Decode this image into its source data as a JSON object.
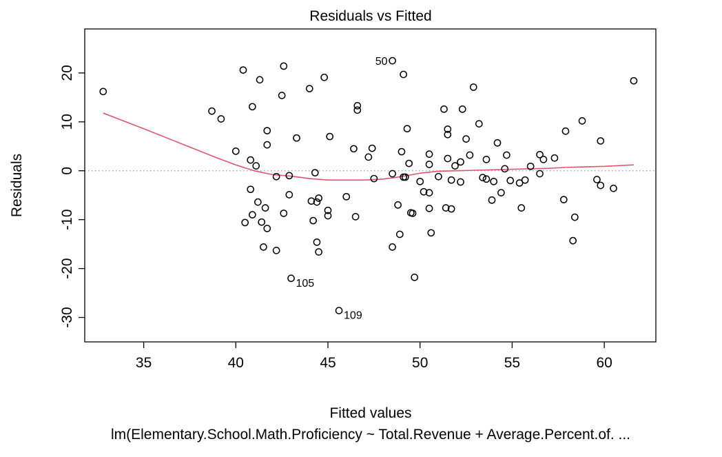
{
  "chart_data": {
    "type": "scatter",
    "title": "Residuals vs Fitted",
    "xlabel": "Fitted values",
    "ylabel": "Residuals",
    "subtitle": "lm(Elementary.School.Math.Proficiency ~ Total.Revenue + Average.Percent.of. ...",
    "xlim": [
      31.8,
      62.8
    ],
    "ylim": [
      -35,
      29
    ],
    "x_ticks": [
      35,
      40,
      45,
      50,
      55,
      60
    ],
    "x_tick_labels": [
      "35",
      "40",
      "45",
      "50",
      "55",
      "60"
    ],
    "y_ticks": [
      -30,
      -20,
      -10,
      0,
      10,
      20
    ],
    "y_tick_labels": [
      "-30",
      "-20",
      "-10",
      "0",
      "10",
      "20"
    ],
    "reference_line": {
      "y": 0,
      "style": "dotted",
      "color": "#999999"
    },
    "points_color": "#000000",
    "smooth_color": "#DF536B",
    "points": [
      {
        "x": 32.8,
        "y": 16.2
      },
      {
        "x": 38.7,
        "y": 12.2
      },
      {
        "x": 39.2,
        "y": 10.6
      },
      {
        "x": 40.0,
        "y": 4.0
      },
      {
        "x": 40.4,
        "y": 20.6
      },
      {
        "x": 40.5,
        "y": -10.6
      },
      {
        "x": 40.8,
        "y": 2.2
      },
      {
        "x": 40.8,
        "y": -3.8
      },
      {
        "x": 40.9,
        "y": 13.1
      },
      {
        "x": 40.9,
        "y": -9.0
      },
      {
        "x": 41.1,
        "y": 1.0
      },
      {
        "x": 41.2,
        "y": -6.4
      },
      {
        "x": 41.3,
        "y": 18.6
      },
      {
        "x": 41.4,
        "y": -10.5
      },
      {
        "x": 41.5,
        "y": -15.6
      },
      {
        "x": 41.6,
        "y": -7.6
      },
      {
        "x": 41.7,
        "y": 8.2
      },
      {
        "x": 41.7,
        "y": 5.3
      },
      {
        "x": 41.7,
        "y": -11.8
      },
      {
        "x": 42.2,
        "y": -1.2
      },
      {
        "x": 42.2,
        "y": -16.3
      },
      {
        "x": 42.5,
        "y": 15.4
      },
      {
        "x": 42.6,
        "y": 21.4
      },
      {
        "x": 42.6,
        "y": -8.7
      },
      {
        "x": 42.9,
        "y": -1.0
      },
      {
        "x": 42.9,
        "y": -4.9
      },
      {
        "x": 43.0,
        "y": -22.0
      },
      {
        "x": 43.3,
        "y": 6.7
      },
      {
        "x": 44.0,
        "y": 16.8
      },
      {
        "x": 44.1,
        "y": -6.2
      },
      {
        "x": 44.2,
        "y": -10.2
      },
      {
        "x": 44.3,
        "y": -0.4
      },
      {
        "x": 44.4,
        "y": -6.4
      },
      {
        "x": 44.4,
        "y": -14.6
      },
      {
        "x": 44.5,
        "y": -16.6
      },
      {
        "x": 44.5,
        "y": -5.6
      },
      {
        "x": 44.8,
        "y": 19.1
      },
      {
        "x": 45.0,
        "y": -8.1
      },
      {
        "x": 45.0,
        "y": -9.2
      },
      {
        "x": 45.1,
        "y": 7.0
      },
      {
        "x": 45.6,
        "y": -28.6
      },
      {
        "x": 46.0,
        "y": -5.3
      },
      {
        "x": 46.4,
        "y": 4.5
      },
      {
        "x": 46.5,
        "y": -9.4
      },
      {
        "x": 46.6,
        "y": 13.3
      },
      {
        "x": 46.6,
        "y": 12.4
      },
      {
        "x": 47.2,
        "y": 2.8
      },
      {
        "x": 47.4,
        "y": 4.6
      },
      {
        "x": 47.5,
        "y": -1.6
      },
      {
        "x": 48.5,
        "y": 22.5
      },
      {
        "x": 48.5,
        "y": -0.6
      },
      {
        "x": 48.5,
        "y": -15.6
      },
      {
        "x": 48.8,
        "y": -7.0
      },
      {
        "x": 48.9,
        "y": -13.0
      },
      {
        "x": 49.0,
        "y": 3.9
      },
      {
        "x": 49.1,
        "y": 19.7
      },
      {
        "x": 49.1,
        "y": -1.3
      },
      {
        "x": 49.2,
        "y": -1.3
      },
      {
        "x": 49.3,
        "y": 8.6
      },
      {
        "x": 49.4,
        "y": 1.5
      },
      {
        "x": 49.5,
        "y": -8.6
      },
      {
        "x": 49.6,
        "y": -8.7
      },
      {
        "x": 49.7,
        "y": -21.8
      },
      {
        "x": 50.0,
        "y": -2.2
      },
      {
        "x": 50.2,
        "y": -4.3
      },
      {
        "x": 50.5,
        "y": 3.4
      },
      {
        "x": 50.5,
        "y": 1.3
      },
      {
        "x": 50.5,
        "y": -4.5
      },
      {
        "x": 50.5,
        "y": -7.7
      },
      {
        "x": 50.6,
        "y": -12.7
      },
      {
        "x": 51.0,
        "y": -1.2
      },
      {
        "x": 51.3,
        "y": 12.6
      },
      {
        "x": 51.4,
        "y": -7.6
      },
      {
        "x": 51.5,
        "y": 8.5
      },
      {
        "x": 51.5,
        "y": 7.4
      },
      {
        "x": 51.5,
        "y": 2.5
      },
      {
        "x": 51.7,
        "y": -1.9
      },
      {
        "x": 51.7,
        "y": -7.8
      },
      {
        "x": 51.9,
        "y": 1.0
      },
      {
        "x": 52.2,
        "y": 1.8
      },
      {
        "x": 52.2,
        "y": -2.3
      },
      {
        "x": 52.3,
        "y": 12.6
      },
      {
        "x": 52.5,
        "y": 6.5
      },
      {
        "x": 52.7,
        "y": 3.2
      },
      {
        "x": 52.9,
        "y": 17.1
      },
      {
        "x": 53.2,
        "y": 9.6
      },
      {
        "x": 53.4,
        "y": -1.4
      },
      {
        "x": 53.6,
        "y": -1.7
      },
      {
        "x": 53.6,
        "y": 2.3
      },
      {
        "x": 53.9,
        "y": -6.0
      },
      {
        "x": 54.0,
        "y": -2.2
      },
      {
        "x": 54.2,
        "y": 5.7
      },
      {
        "x": 54.4,
        "y": -4.5
      },
      {
        "x": 54.6,
        "y": 0.4
      },
      {
        "x": 54.7,
        "y": 3.2
      },
      {
        "x": 54.9,
        "y": -2.0
      },
      {
        "x": 55.4,
        "y": -2.5
      },
      {
        "x": 55.5,
        "y": -7.6
      },
      {
        "x": 55.7,
        "y": -1.9
      },
      {
        "x": 56.0,
        "y": 0.9
      },
      {
        "x": 56.5,
        "y": -0.6
      },
      {
        "x": 56.5,
        "y": 3.3
      },
      {
        "x": 56.7,
        "y": 2.3
      },
      {
        "x": 57.3,
        "y": 2.6
      },
      {
        "x": 57.8,
        "y": -5.9
      },
      {
        "x": 57.9,
        "y": 8.1
      },
      {
        "x": 58.3,
        "y": -14.3
      },
      {
        "x": 58.4,
        "y": -9.5
      },
      {
        "x": 58.8,
        "y": 10.2
      },
      {
        "x": 59.6,
        "y": -1.8
      },
      {
        "x": 59.8,
        "y": 6.1
      },
      {
        "x": 59.8,
        "y": -3.0
      },
      {
        "x": 60.5,
        "y": -3.6
      },
      {
        "x": 61.6,
        "y": 18.4
      }
    ],
    "labeled_points": [
      {
        "label": "50",
        "x": 48.5,
        "y": 22.5,
        "side": "left"
      },
      {
        "label": "105",
        "x": 43.0,
        "y": -22.0,
        "side": "right"
      },
      {
        "label": "109",
        "x": 45.6,
        "y": -28.6,
        "side": "right"
      }
    ],
    "smooth_line": {
      "x": [
        32.8,
        35.0,
        37.0,
        39.0,
        40.0,
        41.0,
        42.0,
        43.0,
        44.0,
        45.0,
        46.0,
        47.0,
        48.0,
        49.0,
        50.0,
        51.0,
        52.0,
        53.0,
        54.0,
        55.0,
        56.0,
        57.0,
        58.0,
        59.0,
        60.0,
        61.6
      ],
      "y": [
        11.8,
        8.6,
        5.6,
        2.6,
        1.2,
        0.0,
        -0.8,
        -1.1,
        -1.6,
        -1.9,
        -1.9,
        -1.9,
        -1.7,
        -1.2,
        -0.5,
        -0.1,
        0.0,
        0.1,
        0.2,
        0.3,
        0.4,
        0.5,
        0.7,
        0.8,
        0.9,
        1.2
      ]
    }
  }
}
